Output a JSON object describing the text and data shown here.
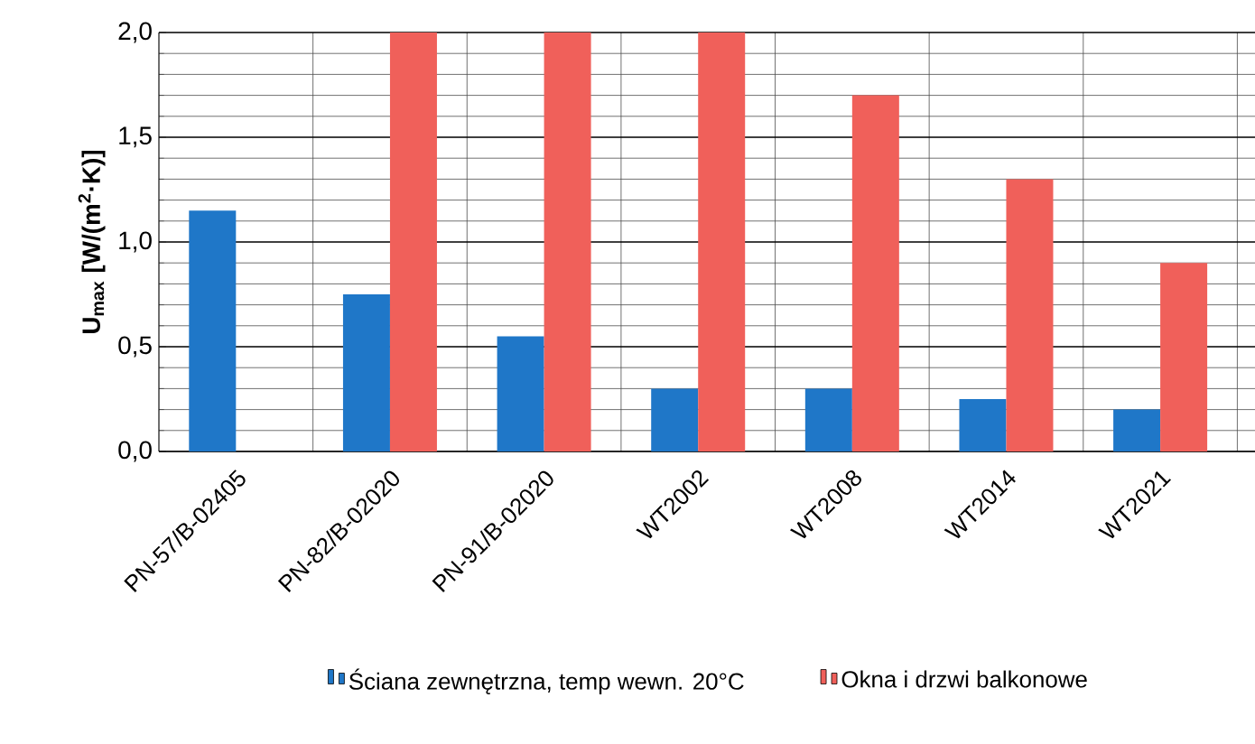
{
  "chart_data": {
    "type": "bar",
    "ylabel": "U$_{max}$ [W/(m$^{2}$·K)]",
    "categories": [
      "PN-57/B-02405",
      "PN-82/B-02020",
      "PN-91/B-02020",
      "WT2002",
      "WT2008",
      "WT2014",
      "WT2021"
    ],
    "series": [
      {
        "name": "Ściana zewnętrzna, temp wewn. 20°C",
        "color": "#1f77c8",
        "values": [
          1.15,
          0.75,
          0.55,
          0.3,
          0.3,
          0.25,
          0.2
        ]
      },
      {
        "name": "Okna i drzwi balkonowe",
        "color": "#f0605a",
        "values": [
          null,
          2.0,
          2.0,
          2.0,
          1.7,
          1.3,
          0.9
        ]
      }
    ],
    "ylim": [
      0,
      2.0
    ],
    "yticks": [
      {
        "value": 0,
        "label": "0,0"
      },
      {
        "value": 0.5,
        "label": "0,5"
      },
      {
        "value": 1.0,
        "label": "1,0"
      },
      {
        "value": 1.5,
        "label": "1,5"
      },
      {
        "value": 2.0,
        "label": "2,0"
      }
    ],
    "grid": true,
    "legend": "bottom"
  }
}
